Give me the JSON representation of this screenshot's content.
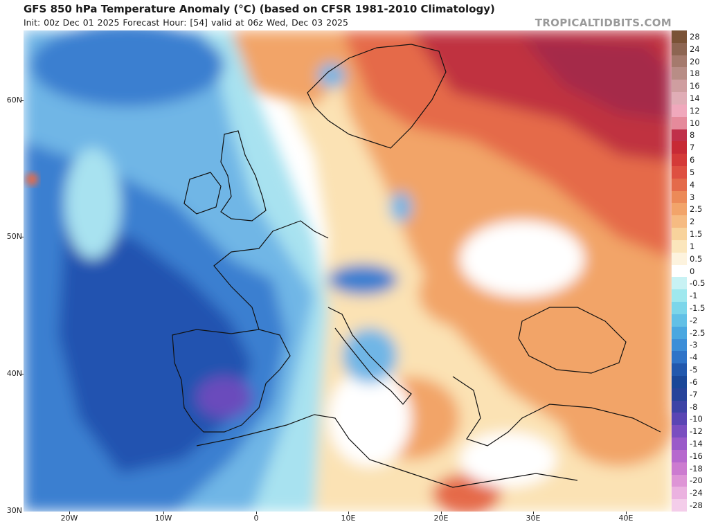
{
  "header": {
    "title": "GFS 850 hPa Temperature Anomaly (°C) (based on CFSR 1981-2010 Climatology)",
    "subtitle": "Init: 00z Dec 01 2025   Forecast Hour: [54]   valid at 06z Wed, Dec 03 2025",
    "brand": "TROPICALTIDBITS.COM"
  },
  "axes": {
    "lat_labels": [
      "60N",
      "50N",
      "40N",
      "30N"
    ],
    "lon_labels": [
      "20W",
      "10W",
      "0",
      "10E",
      "20E",
      "30E",
      "40E"
    ]
  },
  "colorbar": {
    "labels": [
      "28",
      "24",
      "20",
      "18",
      "16",
      "14",
      "12",
      "10",
      "8",
      "7",
      "6",
      "5",
      "4",
      "3",
      "2.5",
      "2",
      "1.5",
      "1",
      "0.5",
      "0",
      "-0.5",
      "-1",
      "-1.5",
      "-2",
      "-2.5",
      "-3",
      "-4",
      "-5",
      "-6",
      "-7",
      "-8",
      "-10",
      "-12",
      "-14",
      "-16",
      "-18",
      "-20",
      "-24",
      "-28"
    ],
    "colors": [
      "#7a5236",
      "#8d6552",
      "#a57a6d",
      "#b88d86",
      "#cf9ea0",
      "#e0adb6",
      "#f0a8bc",
      "#e58a9b",
      "#c0304a",
      "#c72a35",
      "#d43a38",
      "#de5041",
      "#e46a4a",
      "#ec8a58",
      "#f2a46a",
      "#f6bb82",
      "#f8d39c",
      "#fbe6bc",
      "#fdf3de",
      "#ffffff",
      "#c8f2f4",
      "#9fe8ee",
      "#7cd6ea",
      "#62c0e6",
      "#4aa7e0",
      "#3c8ed8",
      "#2f74c8",
      "#2258ad",
      "#1a4798",
      "#27439a",
      "#3d43a6",
      "#5a45b4",
      "#7a4ec0",
      "#9a5ac9",
      "#b668ce",
      "#cc7bd0",
      "#de95d6",
      "#ebb2e0",
      "#f4cdea"
    ]
  },
  "map_colors": {
    "cold_deep": "#2253b0",
    "cold": "#3a7fd0",
    "cool": "#6fb6e6",
    "cool_light": "#a8e2f0",
    "neutral": "#ffffff",
    "warm_light": "#fbe2b4",
    "warm": "#f2a468",
    "hot": "#e56a4a",
    "very_hot": "#c0303f",
    "extreme": "#a52a48",
    "coastline": "#111111",
    "purple_core": "#6a4cbc"
  }
}
